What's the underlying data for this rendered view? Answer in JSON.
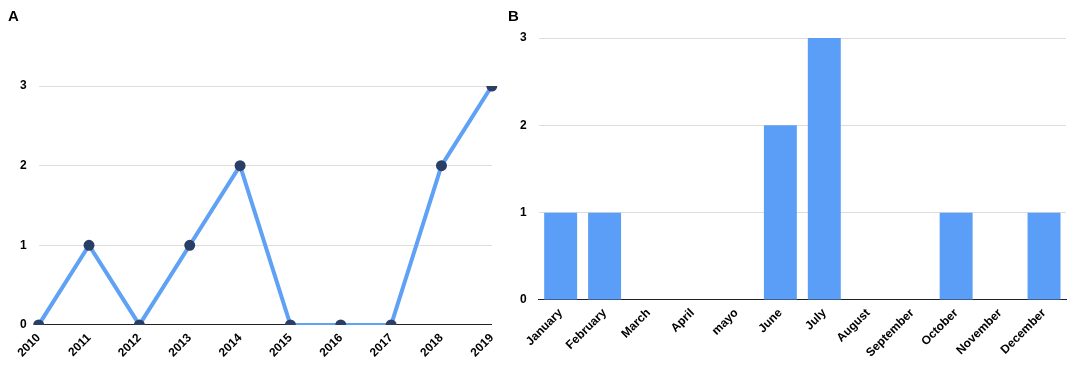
{
  "chart_data": [
    {
      "type": "line",
      "title": "A",
      "categories": [
        "2010",
        "2011",
        "2012",
        "2013",
        "2014",
        "2015",
        "2016",
        "2017",
        "2018",
        "2019"
      ],
      "values": [
        0,
        1,
        0,
        1,
        2,
        0,
        0,
        0,
        2,
        3
      ],
      "color": "#5fa2f5",
      "ylim": [
        0,
        3
      ],
      "yticks": [
        0,
        1,
        2,
        3
      ],
      "grid": "y",
      "marker": "circle"
    },
    {
      "type": "bar",
      "title": "B",
      "categories": [
        "January",
        "February",
        "March",
        "April",
        "mayo",
        "June",
        "July",
        "August",
        "September",
        "October",
        "November",
        "December"
      ],
      "values": [
        1,
        1,
        0,
        0,
        0,
        2,
        3,
        0,
        0,
        1,
        0,
        1
      ],
      "color": "#5b9ef7",
      "ylim": [
        0,
        3
      ],
      "yticks": [
        0,
        1,
        2,
        3
      ],
      "grid": "y"
    }
  ]
}
